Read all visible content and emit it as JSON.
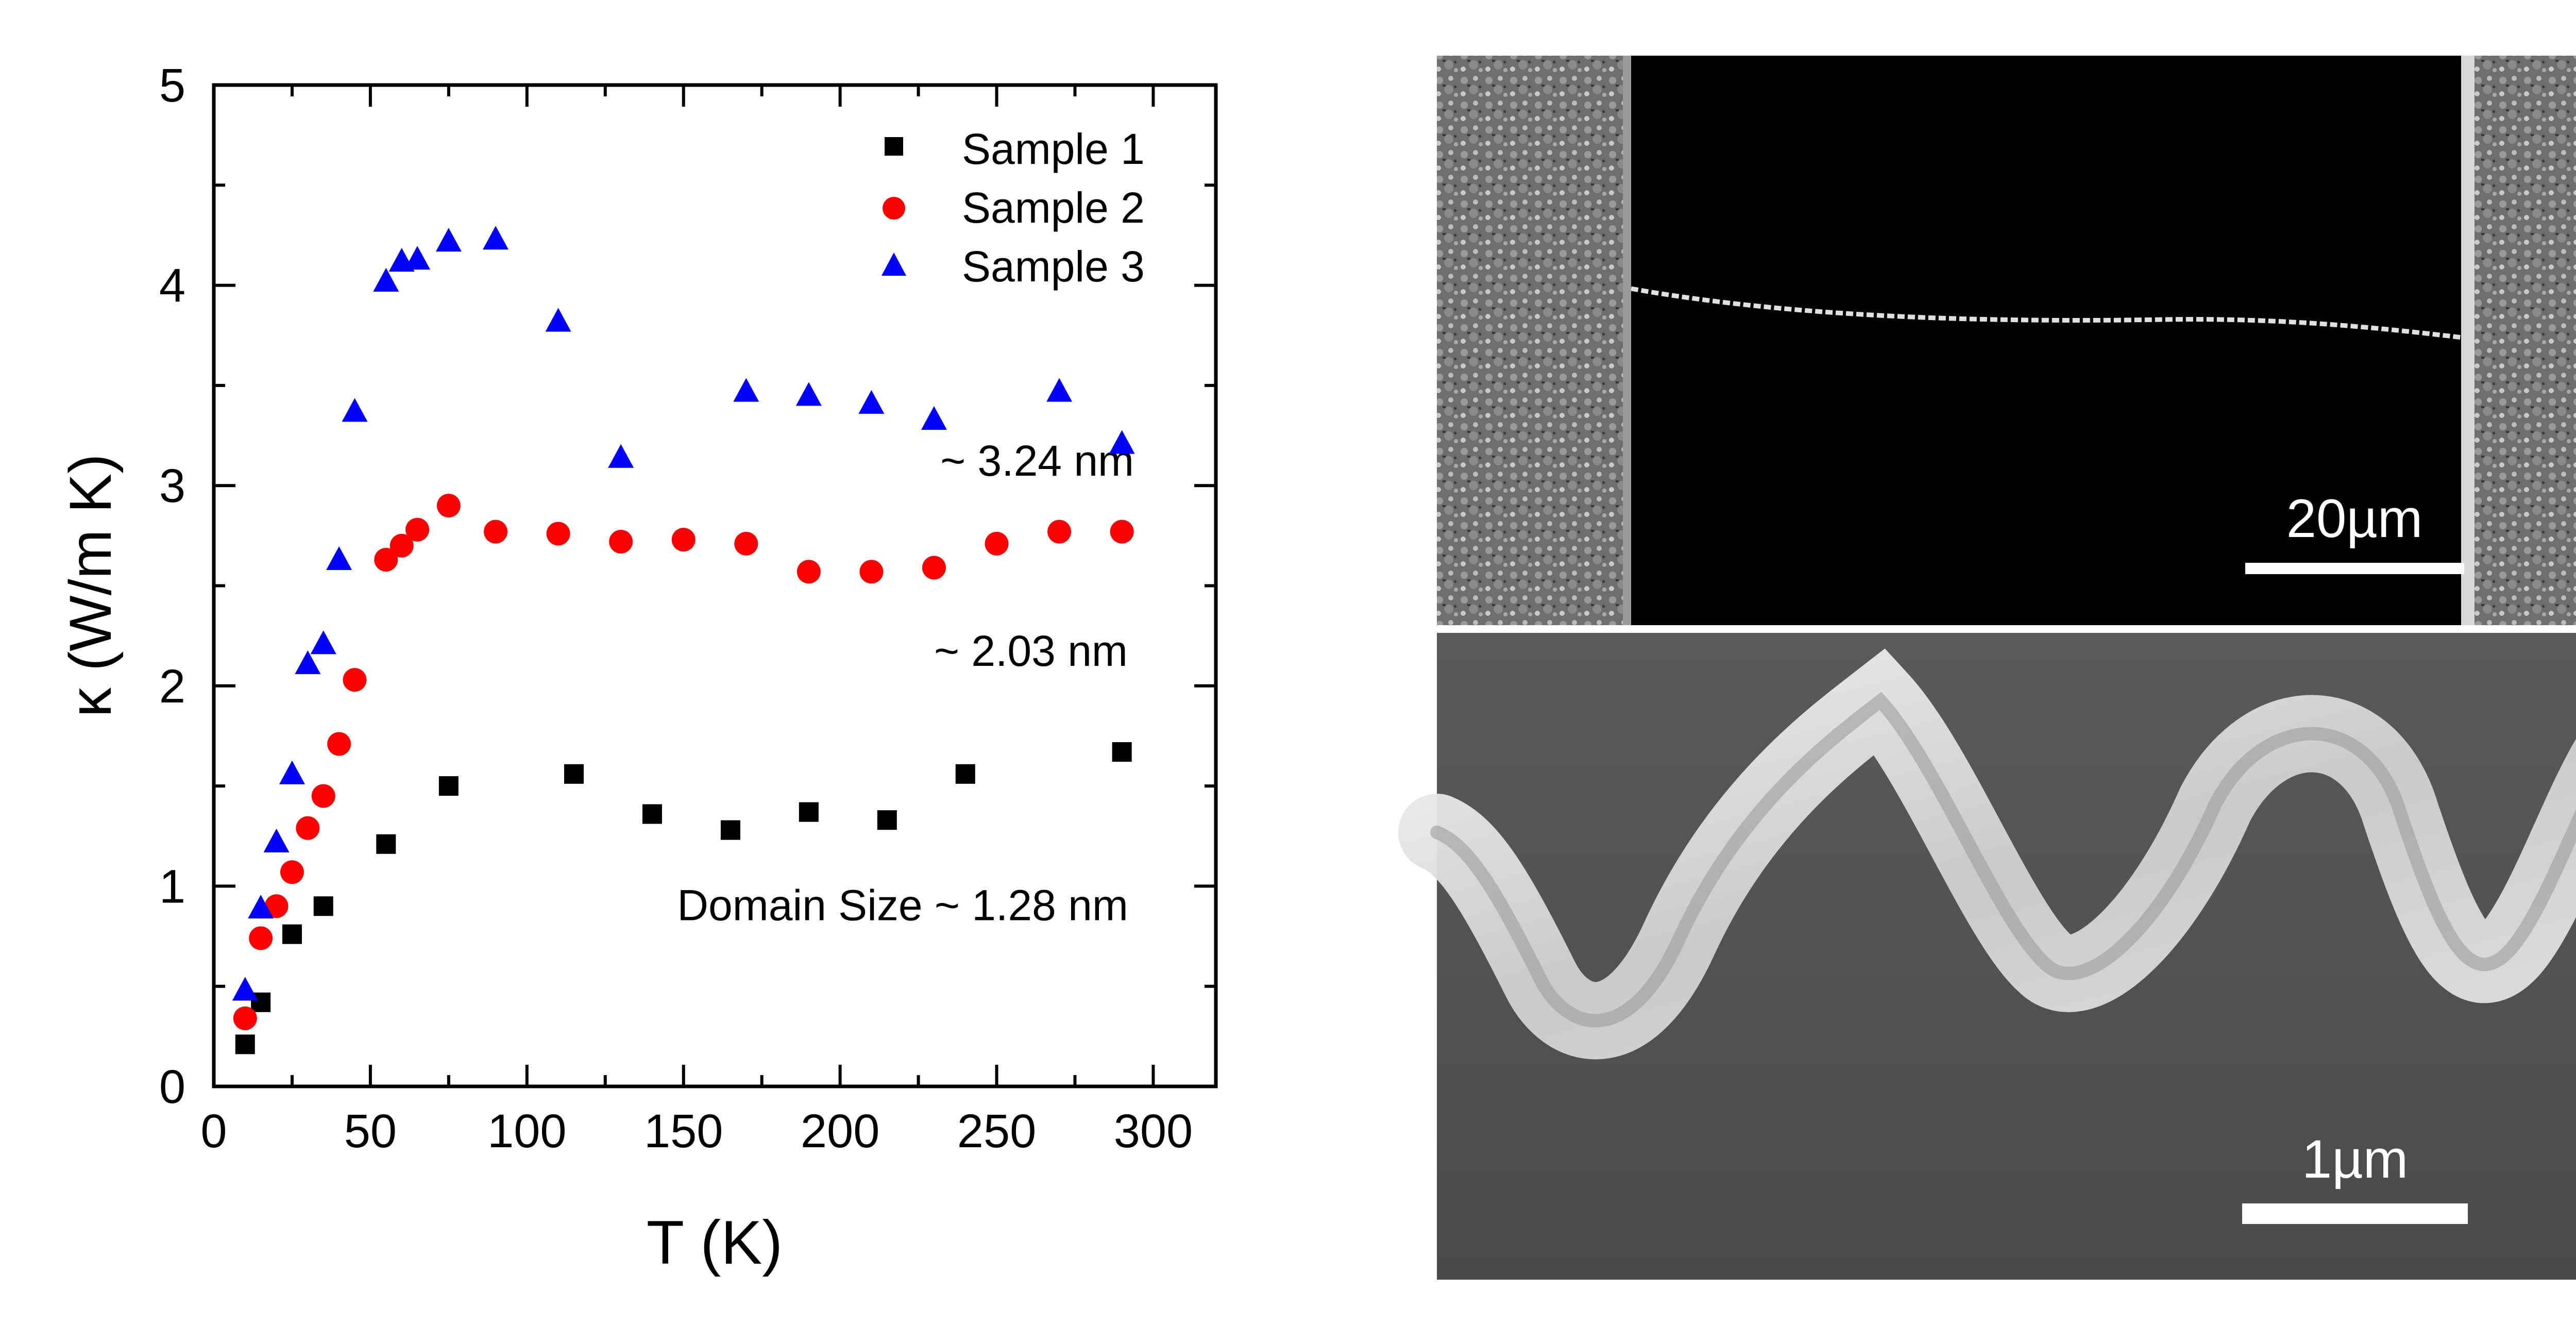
{
  "chart_data": {
    "type": "scatter",
    "title": "",
    "xlabel": "T (K)",
    "ylabel": "κ (W/m K)",
    "xlim": [
      0,
      320
    ],
    "ylim": [
      0,
      5
    ],
    "xticks": [
      "0",
      "50",
      "100",
      "150",
      "200",
      "250",
      "300"
    ],
    "yticks": [
      "0",
      "1",
      "2",
      "3",
      "4",
      "5"
    ],
    "grid": false,
    "legend_position": "top-right",
    "series": [
      {
        "name": "Sample 1",
        "marker": "square",
        "color": "#000000",
        "x": [
          10,
          15,
          25,
          35,
          55,
          75,
          115,
          140,
          165,
          190,
          215,
          240,
          290
        ],
        "y": [
          0.21,
          0.42,
          0.76,
          0.9,
          1.21,
          1.5,
          1.56,
          1.36,
          1.28,
          1.37,
          1.33,
          1.56,
          1.67
        ]
      },
      {
        "name": "Sample 2",
        "marker": "circle",
        "color": "#ff0000",
        "x": [
          10,
          15,
          20,
          25,
          30,
          35,
          40,
          45,
          55,
          60,
          65,
          75,
          90,
          110,
          130,
          150,
          170,
          190,
          210,
          230,
          250,
          270,
          290
        ],
        "y": [
          0.34,
          0.74,
          0.9,
          1.07,
          1.29,
          1.45,
          1.71,
          2.03,
          2.63,
          2.7,
          2.78,
          2.9,
          2.77,
          2.76,
          2.72,
          2.73,
          2.71,
          2.57,
          2.57,
          2.59,
          2.71,
          2.77,
          2.77
        ]
      },
      {
        "name": "Sample 3",
        "marker": "triangle",
        "color": "#0000ff",
        "x": [
          10,
          15,
          20,
          25,
          30,
          35,
          40,
          45,
          55,
          60,
          65,
          75,
          90,
          110,
          130,
          170,
          190,
          210,
          230,
          270,
          290
        ],
        "y": [
          0.48,
          0.89,
          1.22,
          1.56,
          2.11,
          2.21,
          2.63,
          3.37,
          4.02,
          4.12,
          4.13,
          4.22,
          4.23,
          3.82,
          3.14,
          3.47,
          3.45,
          3.41,
          3.33,
          3.47,
          3.21
        ]
      }
    ],
    "annotations": [
      {
        "text": "~ 3.24 nm",
        "x": 232,
        "y": 3.05
      },
      {
        "text": "~ 2.03 nm",
        "x": 230,
        "y": 2.1
      },
      {
        "text": "Domain Size  ~ 1.28 nm",
        "x": 292,
        "y": 0.83,
        "anchor": "end"
      }
    ]
  },
  "micrographs": {
    "top": {
      "scale_bar_label": "20µm"
    },
    "bottom": {
      "scale_bar_label": "1µm"
    }
  }
}
